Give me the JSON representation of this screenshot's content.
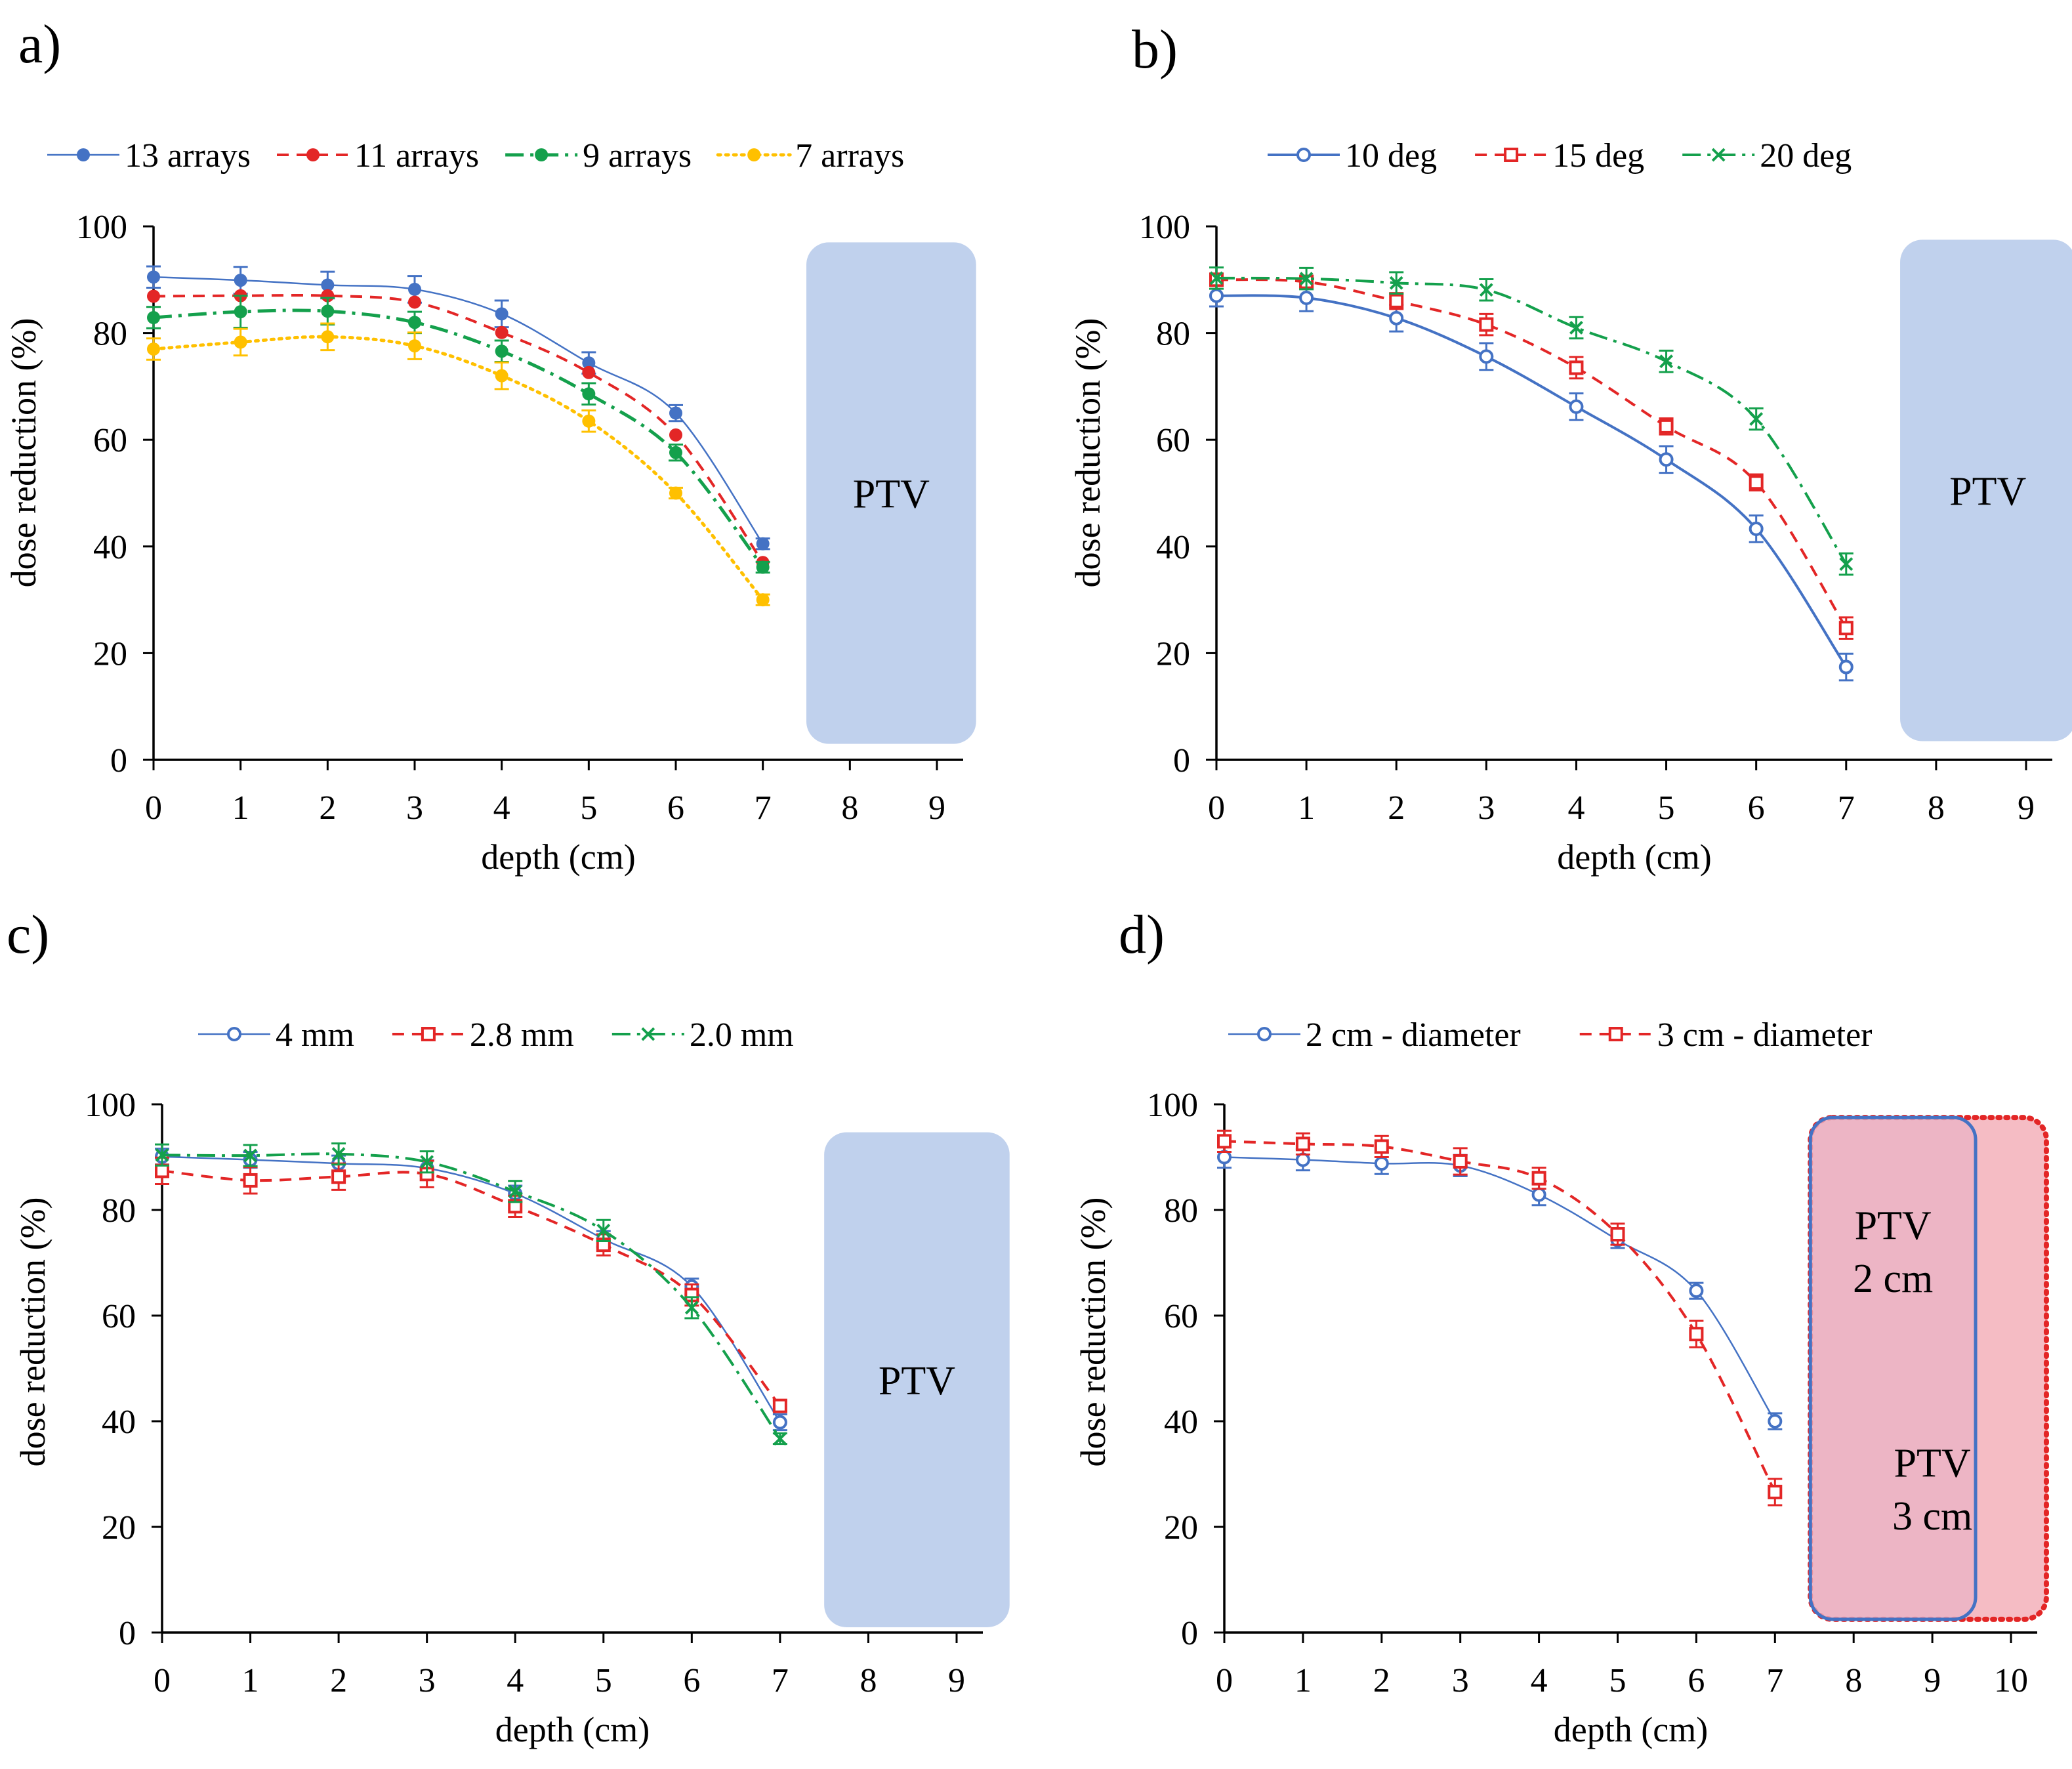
{
  "chart_data": [
    {
      "panel_label": "a)",
      "type": "line",
      "xlabel": "depth (cm)",
      "ylabel": "dose reduction (%)",
      "xlim": [
        0,
        9
      ],
      "ylim": [
        0,
        100
      ],
      "xticks": [
        "0",
        "1",
        "2",
        "3",
        "4",
        "5",
        "6",
        "7",
        "8",
        "9"
      ],
      "yticks": [
        "0",
        "20",
        "40",
        "60",
        "80",
        "100"
      ],
      "ptv": [
        {
          "label": "PTV",
          "x_from": 7.5,
          "x_to": 9.45,
          "y_from": 3,
          "y_to": 97,
          "fill": "#c0d1ed",
          "stroke": "none",
          "label_color": "#000000"
        }
      ],
      "series": [
        {
          "name": "13 arrays",
          "color": "#4472c4",
          "dash": "",
          "marker": "dot",
          "smooth": true,
          "width": 2.5,
          "x": [
            0,
            1,
            2,
            3,
            4,
            5,
            6,
            7
          ],
          "y": [
            90.5,
            89.9,
            89.0,
            88.2,
            83.6,
            74.4,
            65.0,
            40.5
          ],
          "err": [
            2,
            2.5,
            2.5,
            2.5,
            2.5,
            2,
            1.5,
            1
          ]
        },
        {
          "name": "11 arrays",
          "color": "#e32626",
          "dash": "18,12",
          "marker": "dot",
          "smooth": true,
          "width": 4,
          "x": [
            0,
            1,
            2,
            3,
            4,
            5,
            6,
            7
          ],
          "y": [
            86.9,
            87.0,
            87.0,
            85.8,
            80.1,
            72.6,
            60.9,
            37.0
          ],
          "err": [
            0,
            0,
            0,
            0,
            0,
            0,
            0,
            0
          ]
        },
        {
          "name": "9 arrays",
          "color": "#14a04c",
          "dash": "28,10,5,10",
          "marker": "dot",
          "smooth": true,
          "width": 5,
          "x": [
            0,
            1,
            2,
            3,
            4,
            5,
            6,
            7
          ],
          "y": [
            82.9,
            84.0,
            84.1,
            82.0,
            76.6,
            68.6,
            57.6,
            36.1
          ],
          "err": [
            2,
            3,
            2.5,
            2,
            2,
            2,
            1.5,
            1
          ]
        },
        {
          "name": "7 arrays",
          "color": "#ffc000",
          "dash": "4,8",
          "marker": "dot",
          "smooth": true,
          "width": 5,
          "x": [
            0,
            1,
            2,
            3,
            4,
            5,
            6,
            7
          ],
          "y": [
            77.0,
            78.3,
            79.3,
            77.6,
            72.0,
            63.5,
            50.0,
            30.0
          ],
          "err": [
            2,
            2.5,
            2.5,
            2.5,
            2.5,
            2,
            1,
            1
          ]
        }
      ]
    },
    {
      "panel_label": "b)",
      "type": "line",
      "xlabel": "depth (cm)",
      "ylabel": "dose reduction (%)",
      "xlim": [
        0,
        9
      ],
      "ylim": [
        0,
        100
      ],
      "xticks": [
        "0",
        "1",
        "2",
        "3",
        "4",
        "5",
        "6",
        "7",
        "8",
        "9"
      ],
      "yticks": [
        "0",
        "20",
        "40",
        "60",
        "80",
        "100"
      ],
      "ptv": [
        {
          "label": "PTV",
          "x_from": 7.6,
          "x_to": 9.55,
          "y_from": 3.5,
          "y_to": 97.5,
          "fill": "#c0d1ed",
          "stroke": "none",
          "label_color": "#000000"
        }
      ],
      "series": [
        {
          "name": "10 deg",
          "color": "#4472c4",
          "dash": "",
          "marker": "circle",
          "smooth": true,
          "width": 4,
          "x": [
            0,
            1,
            2,
            3,
            4,
            5,
            6,
            7
          ],
          "y": [
            87.0,
            86.6,
            82.8,
            75.6,
            66.2,
            56.3,
            43.3,
            17.4
          ],
          "err": [
            2,
            2.5,
            2.5,
            2.5,
            2.5,
            2.5,
            2.5,
            2.5
          ]
        },
        {
          "name": "15 deg",
          "color": "#e32626",
          "dash": "18,12",
          "marker": "square",
          "smooth": true,
          "width": 4,
          "x": [
            0,
            1,
            2,
            3,
            4,
            5,
            6,
            7
          ],
          "y": [
            90.0,
            89.6,
            86.0,
            81.6,
            73.5,
            62.5,
            52.0,
            24.7
          ],
          "err": [
            1,
            1,
            1.5,
            2,
            2,
            1.5,
            1.5,
            2
          ]
        },
        {
          "name": "20 deg",
          "color": "#14a04c",
          "dash": "28,10,5,10",
          "marker": "x",
          "smooth": true,
          "width": 4,
          "x": [
            0,
            1,
            2,
            3,
            4,
            5,
            6,
            7
          ],
          "y": [
            90.3,
            90.2,
            89.4,
            88.1,
            81.0,
            74.7,
            63.9,
            36.7
          ],
          "err": [
            2,
            2,
            2,
            2,
            2,
            2,
            2,
            2
          ]
        }
      ]
    },
    {
      "panel_label": "c)",
      "type": "line",
      "xlabel": "depth (cm)",
      "ylabel": "dose reduction (%)",
      "xlim": [
        0,
        9
      ],
      "ylim": [
        0,
        100
      ],
      "xticks": [
        "0",
        "1",
        "2",
        "3",
        "4",
        "5",
        "6",
        "7",
        "8",
        "9"
      ],
      "yticks": [
        "0",
        "20",
        "40",
        "60",
        "80",
        "100"
      ],
      "ptv": [
        {
          "label": "PTV",
          "x_from": 7.5,
          "x_to": 9.6,
          "y_from": 1,
          "y_to": 94.7,
          "fill": "#c0d1ed",
          "stroke": "none",
          "label_color": "#000000"
        }
      ],
      "series": [
        {
          "name": "4 mm",
          "color": "#4472c4",
          "dash": "",
          "marker": "circle",
          "smooth": true,
          "width": 2.5,
          "x": [
            0,
            1,
            2,
            3,
            4,
            5,
            6,
            7
          ],
          "y": [
            90.1,
            89.5,
            88.8,
            87.9,
            83.1,
            74.5,
            65.5,
            39.8
          ],
          "err": [
            1.5,
            1.5,
            1.5,
            1.5,
            1.5,
            1.5,
            1.5,
            1.5
          ]
        },
        {
          "name": "2.8 mm",
          "color": "#e32626",
          "dash": "18,12",
          "marker": "square",
          "smooth": true,
          "width": 4,
          "x": [
            0,
            1,
            2,
            3,
            4,
            5,
            6,
            7
          ],
          "y": [
            87.4,
            85.6,
            86.3,
            86.8,
            80.7,
            73.4,
            63.9,
            42.9
          ],
          "err": [
            2.5,
            2.5,
            2.5,
            2.5,
            2,
            2,
            2,
            1
          ]
        },
        {
          "name": "2.0 mm",
          "color": "#14a04c",
          "dash": "28,10,5,10",
          "marker": "x",
          "smooth": true,
          "width": 4,
          "x": [
            0,
            1,
            2,
            3,
            4,
            5,
            6,
            7
          ],
          "y": [
            90.4,
            90.3,
            90.6,
            89.1,
            83.5,
            76.1,
            61.5,
            36.7
          ],
          "err": [
            2,
            2,
            2,
            2,
            2,
            2,
            2,
            1
          ]
        }
      ]
    },
    {
      "panel_label": "d)",
      "type": "line",
      "xlabel": "depth (cm)",
      "ylabel": "dose reduction (%)",
      "xlim": [
        0,
        10
      ],
      "ylim": [
        0,
        100
      ],
      "xticks": [
        "0",
        "1",
        "2",
        "3",
        "4",
        "5",
        "6",
        "7",
        "8",
        "9",
        "10"
      ],
      "yticks": [
        "0",
        "20",
        "40",
        "60",
        "80",
        "100"
      ],
      "ptv": [
        {
          "label": "PTV 3 cm",
          "x_from": 7.45,
          "x_to": 10.45,
          "y_from": 2.5,
          "y_to": 97.5,
          "fill": "#f5bcc4",
          "stroke": "#e32626",
          "stroke_dash": "3,9",
          "label_color": "#e32626",
          "label_x": 9.0,
          "label_y1": 29.5,
          "label_y2": 19.5
        },
        {
          "label": "PTV 2 cm",
          "x_from": 7.45,
          "x_to": 9.55,
          "y_from": 2.5,
          "y_to": 97.5,
          "fill": "#e9b3c5",
          "stroke": "#4472c4",
          "stroke_dash": "",
          "label_color": "#7f8fbf",
          "label_x": 8.5,
          "label_y1": 74.5,
          "label_y2": 64.5
        }
      ],
      "series": [
        {
          "name": "2 cm - diameter",
          "color": "#4472c4",
          "dash": "",
          "marker": "circle",
          "smooth": true,
          "width": 2.5,
          "x": [
            0,
            1,
            2,
            3,
            4,
            5,
            6,
            7
          ],
          "y": [
            90.0,
            89.5,
            88.8,
            88.4,
            82.9,
            74.3,
            64.7,
            40.0
          ],
          "err": [
            2,
            2,
            2,
            2,
            2,
            1.5,
            1.5,
            1.5
          ]
        },
        {
          "name": "3 cm - diameter",
          "color": "#e32626",
          "dash": "18,12",
          "marker": "square",
          "smooth": true,
          "width": 4,
          "x": [
            0,
            1,
            2,
            3,
            4,
            5,
            6,
            7
          ],
          "y": [
            93.0,
            92.5,
            92.0,
            89.2,
            86.0,
            75.4,
            56.5,
            26.6
          ],
          "err": [
            2,
            2,
            2,
            2.5,
            2,
            2,
            2.5,
            2.5
          ]
        }
      ]
    }
  ]
}
